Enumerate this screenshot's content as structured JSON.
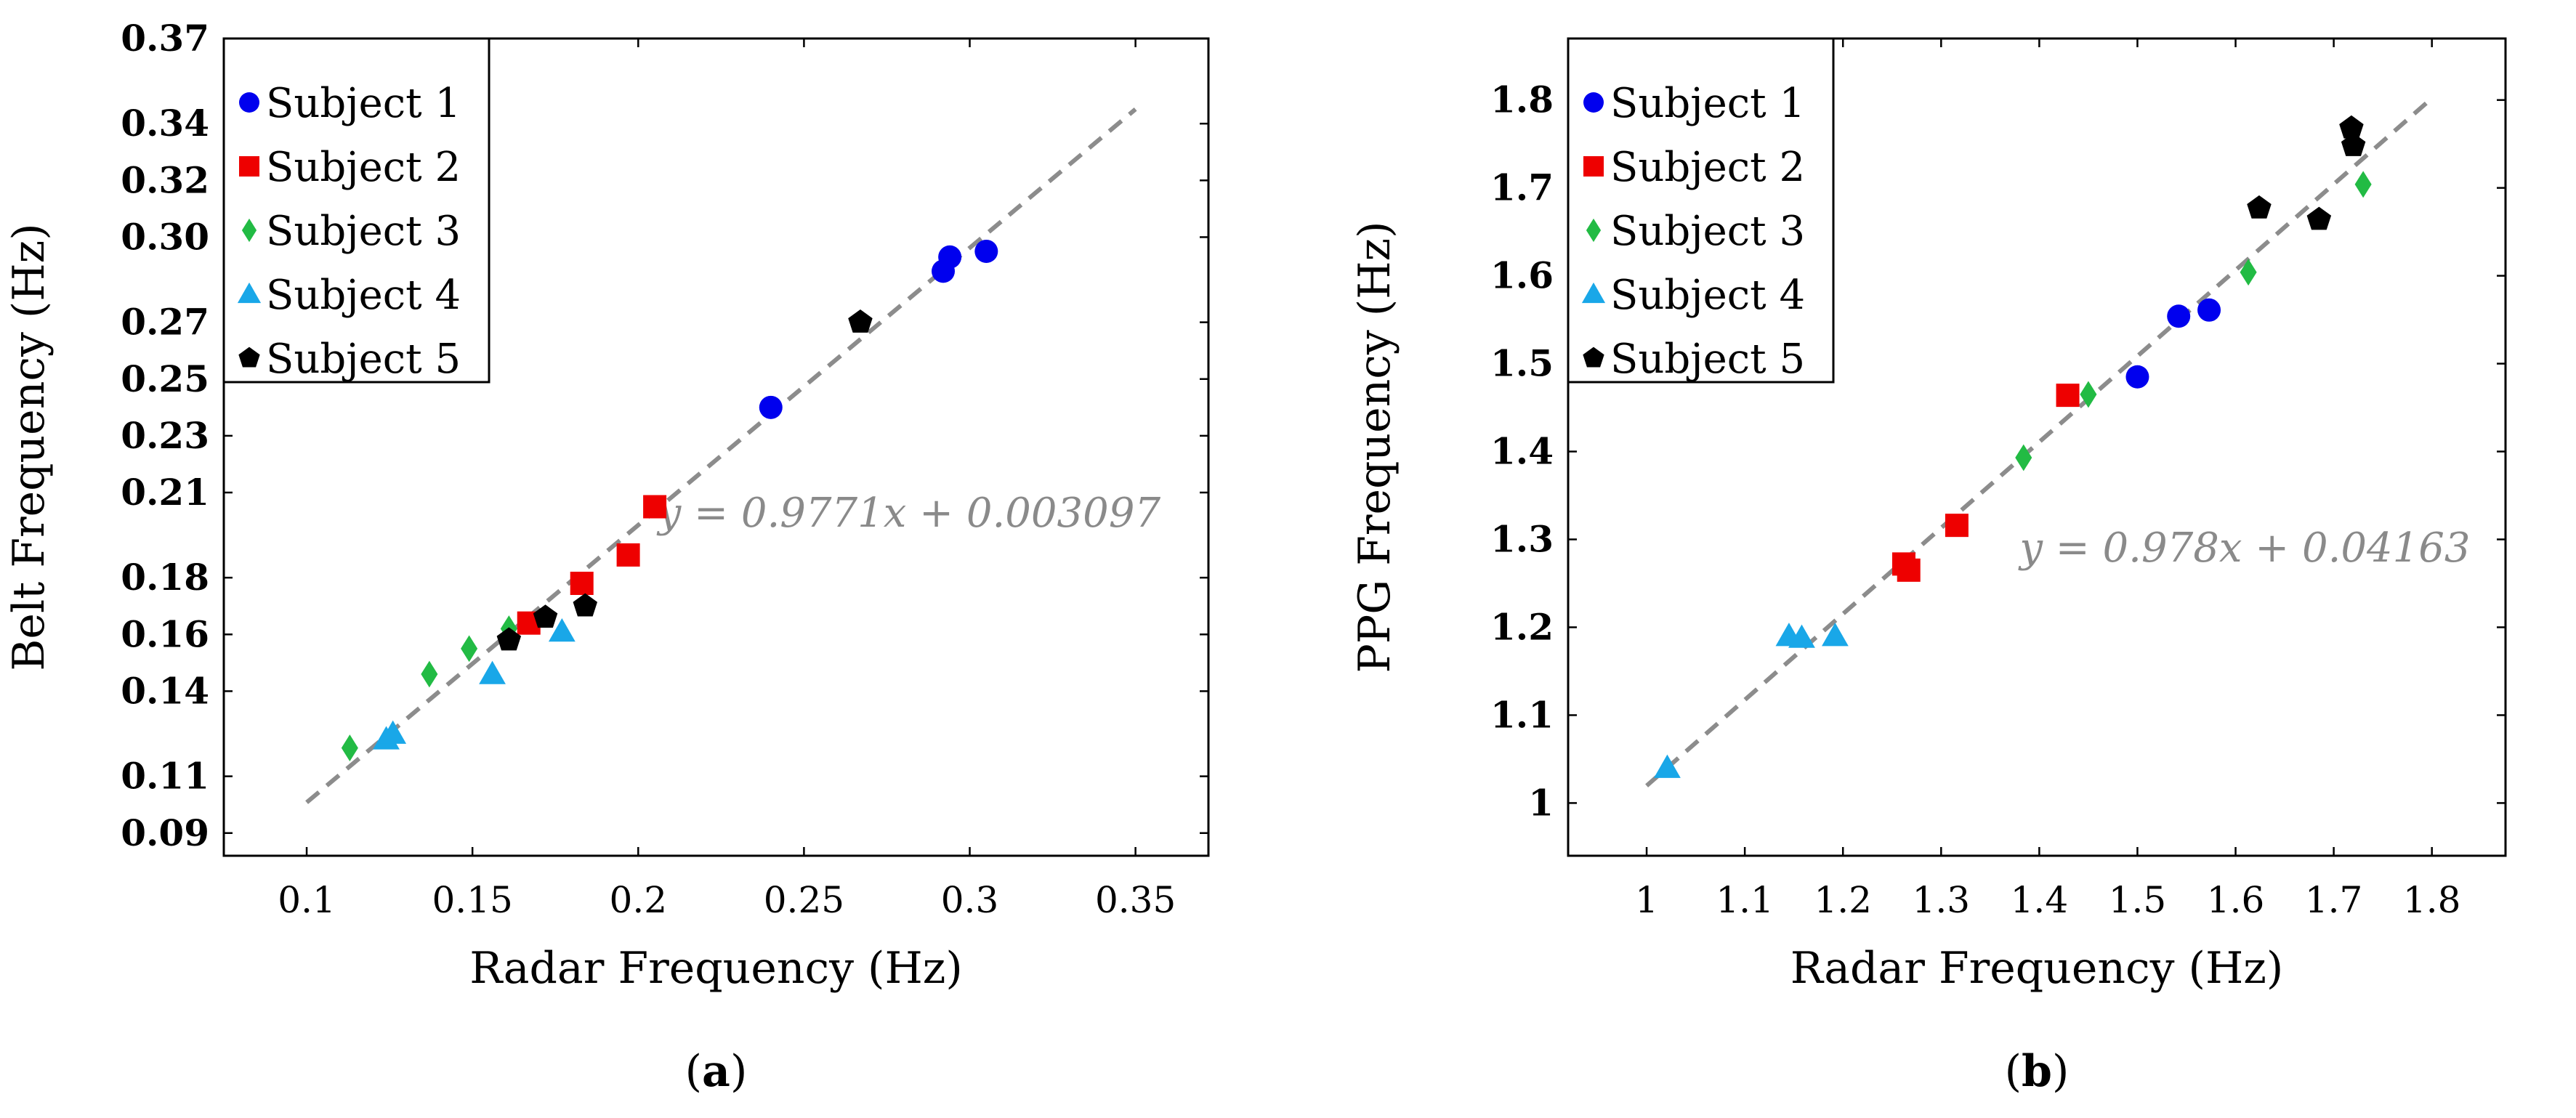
{
  "chart_data": [
    {
      "type": "scatter",
      "panel_label": "(a)",
      "xlabel": "Radar Frequency (Hz)",
      "ylabel": "Belt Frequency (Hz)",
      "xlim": [
        0.075,
        0.372
      ],
      "ylim": [
        0.082,
        0.37
      ],
      "xticks": [
        0.1,
        0.15,
        0.2,
        0.25,
        0.3,
        0.35
      ],
      "xtick_labels": [
        "0.1",
        "0.15",
        "0.2",
        "0.25",
        "0.3",
        "0.35"
      ],
      "yticks": [
        0.09,
        0.11,
        0.14,
        0.16,
        0.18,
        0.21,
        0.23,
        0.25,
        0.27,
        0.3,
        0.32,
        0.34,
        0.37
      ],
      "ytick_labels": [
        "0.09",
        "0.11",
        "0.14",
        "0.16",
        "0.18",
        "0.21",
        "0.23",
        "0.25",
        "0.27",
        "0.30",
        "0.32",
        "0.34",
        "0.37"
      ],
      "legend_position": "top-left",
      "fit": {
        "slope": 0.9771,
        "intercept": 0.003097,
        "x_range": [
          0.1,
          0.35
        ],
        "label": "y = 0.9771x + 0.003097"
      },
      "series": [
        {
          "name": "Subject 1",
          "color": "#0000ee",
          "marker": "circle",
          "points": [
            [
              0.24,
              0.24
            ],
            [
              0.292,
              0.288
            ],
            [
              0.294,
              0.293
            ],
            [
              0.305,
              0.295
            ]
          ]
        },
        {
          "name": "Subject 2",
          "color": "#ee0000",
          "marker": "square",
          "points": [
            [
              0.167,
              0.164
            ],
            [
              0.183,
              0.178
            ],
            [
              0.197,
              0.188
            ],
            [
              0.205,
              0.205
            ]
          ]
        },
        {
          "name": "Subject 3",
          "color": "#22bb44",
          "marker": "diamond",
          "points": [
            [
              0.113,
              0.12
            ],
            [
              0.137,
              0.146
            ],
            [
              0.149,
              0.155
            ],
            [
              0.161,
              0.162
            ]
          ]
        },
        {
          "name": "Subject 4",
          "color": "#19a7e8",
          "marker": "triangle",
          "points": [
            [
              0.124,
              0.123
            ],
            [
              0.126,
              0.125
            ],
            [
              0.156,
              0.146
            ],
            [
              0.177,
              0.161
            ]
          ]
        },
        {
          "name": "Subject 5",
          "color": "#000000",
          "marker": "pentagon",
          "points": [
            [
              0.161,
              0.158
            ],
            [
              0.172,
              0.166
            ],
            [
              0.184,
              0.17
            ],
            [
              0.267,
              0.27
            ]
          ]
        }
      ]
    },
    {
      "type": "scatter",
      "panel_label": "(b)",
      "xlabel": "Radar Frequency (Hz)",
      "ylabel": "PPG Frequency (Hz)",
      "xlim": [
        0.92,
        1.875
      ],
      "ylim": [
        0.94,
        1.87
      ],
      "xticks": [
        1,
        1.1,
        1.2,
        1.3,
        1.4,
        1.5,
        1.6,
        1.7,
        1.8
      ],
      "xtick_labels": [
        "1",
        "1.1",
        "1.2",
        "1.3",
        "1.4",
        "1.5",
        "1.6",
        "1.7",
        "1.8"
      ],
      "yticks": [
        1,
        1.1,
        1.2,
        1.3,
        1.4,
        1.5,
        1.6,
        1.7,
        1.8
      ],
      "ytick_labels": [
        "1",
        "1.1",
        "1.2",
        "1.3",
        "1.4",
        "1.5",
        "1.6",
        "1.7",
        "1.8"
      ],
      "legend_position": "top-left",
      "fit": {
        "slope": 0.978,
        "intercept": 0.04163,
        "x_range": [
          1.0,
          1.8
        ],
        "label": "y = 0.978x + 0.04163"
      },
      "series": [
        {
          "name": "Subject 1",
          "color": "#0000ee",
          "marker": "circle",
          "points": [
            [
              1.5,
              1.485
            ],
            [
              1.542,
              1.554
            ],
            [
              1.573,
              1.561
            ]
          ]
        },
        {
          "name": "Subject 2",
          "color": "#ee0000",
          "marker": "square",
          "points": [
            [
              1.262,
              1.272
            ],
            [
              1.267,
              1.265
            ],
            [
              1.316,
              1.316
            ],
            [
              1.429,
              1.464
            ]
          ]
        },
        {
          "name": "Subject 3",
          "color": "#22bb44",
          "marker": "diamond",
          "points": [
            [
              1.384,
              1.393
            ],
            [
              1.45,
              1.465
            ],
            [
              1.613,
              1.604
            ],
            [
              1.73,
              1.704
            ]
          ]
        },
        {
          "name": "Subject 4",
          "color": "#19a7e8",
          "marker": "triangle",
          "points": [
            [
              1.021,
              1.04
            ],
            [
              1.145,
              1.19
            ],
            [
              1.158,
              1.188
            ],
            [
              1.192,
              1.19
            ]
          ]
        },
        {
          "name": "Subject 5",
          "color": "#000000",
          "marker": "pentagon",
          "points": [
            [
              1.624,
              1.677
            ],
            [
              1.685,
              1.664
            ],
            [
              1.718,
              1.768
            ],
            [
              1.72,
              1.748
            ]
          ]
        }
      ]
    }
  ]
}
